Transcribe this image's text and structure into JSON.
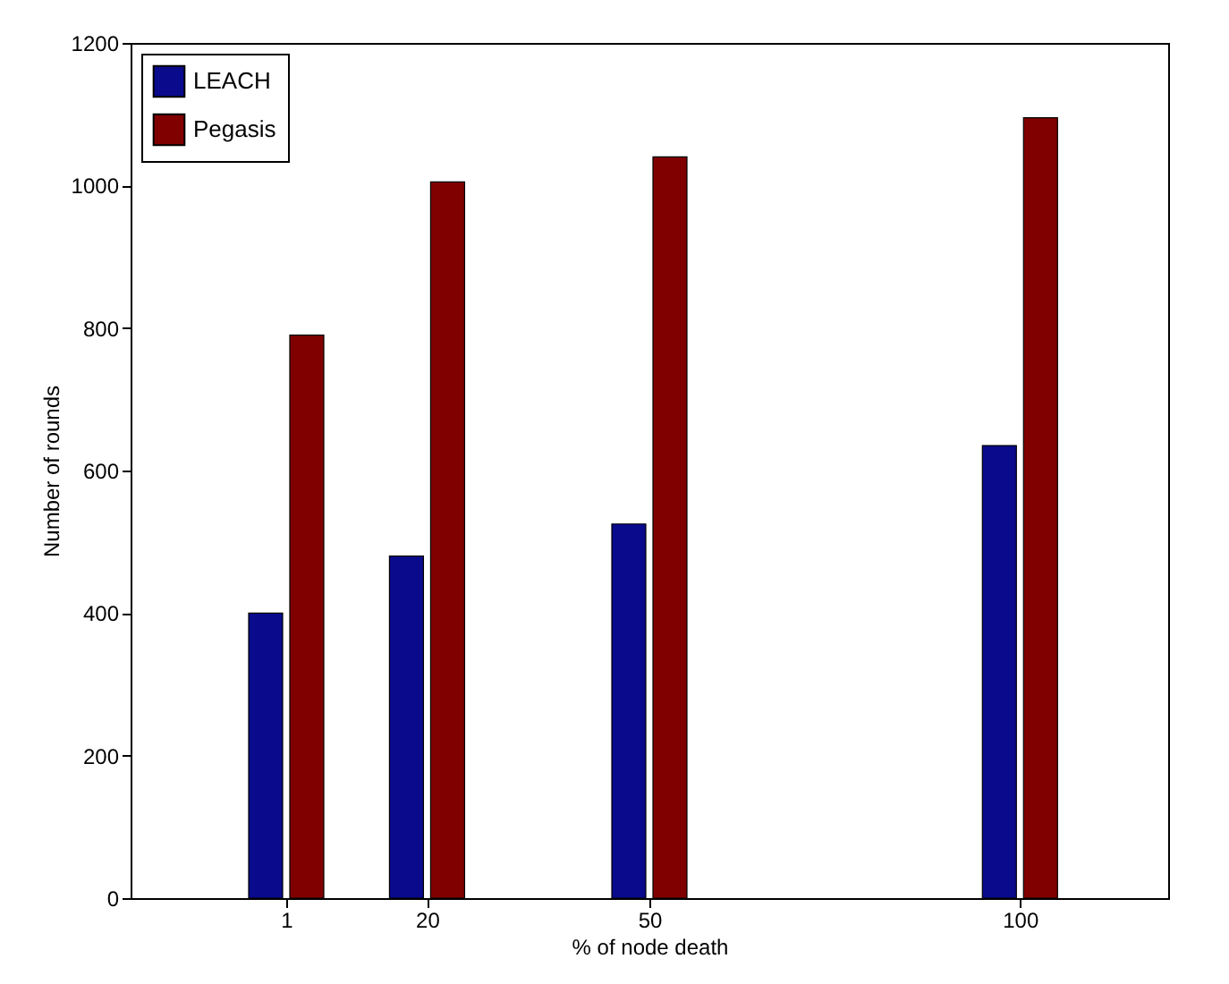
{
  "chart_data": {
    "type": "bar",
    "xlabel": "% of node death",
    "ylabel": "Number of rounds",
    "x": [
      1,
      20,
      50,
      100
    ],
    "xlim": [
      -20,
      120
    ],
    "xticks": [
      1,
      20,
      50,
      100
    ],
    "ylim": [
      0,
      1200
    ],
    "yticks": [
      0,
      200,
      400,
      600,
      800,
      1000,
      1200
    ],
    "series": [
      {
        "name": "LEACH",
        "color": "#0a0a8c",
        "values": [
          400,
          480,
          525,
          635
        ]
      },
      {
        "name": "Pegasis",
        "color": "#800000",
        "values": [
          790,
          1005,
          1040,
          1095
        ]
      }
    ],
    "legend": "top left",
    "grid": false
  }
}
